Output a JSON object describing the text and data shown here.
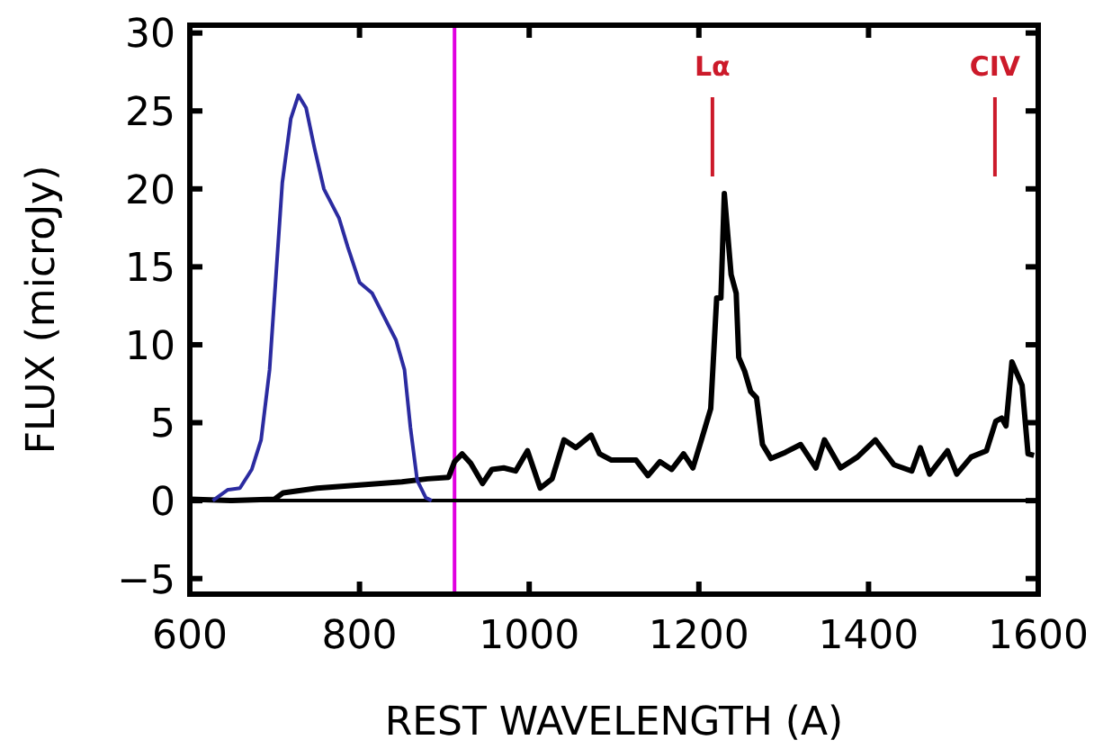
{
  "chart_data": {
    "type": "line",
    "xlabel": "REST WAVELENGTH (A)",
    "ylabel": "FLUX (microJy)",
    "xlim": [
      600,
      1600
    ],
    "xticks": [
      600,
      800,
      1000,
      1200,
      1400,
      1600
    ],
    "ylim": [
      -6,
      30.5
    ],
    "yticks": [
      {
        "value": -5,
        "label": "−5"
      },
      0,
      5,
      10,
      15,
      20,
      25,
      30
    ],
    "grid": false,
    "line_style": "solid",
    "marker": "none",
    "series": [
      {
        "color": "#000000",
        "x": [
          600,
          650,
          700,
          710,
          750,
          800,
          850,
          880,
          905,
          912,
          921,
          931,
          945,
          956,
          970,
          984,
          998,
          1013,
          1027,
          1041,
          1055,
          1073,
          1083,
          1097,
          1126,
          1140,
          1154,
          1168,
          1182,
          1193,
          1203,
          1214,
          1221,
          1226,
          1230,
          1238,
          1244,
          1247,
          1254,
          1261,
          1268,
          1275,
          1285,
          1302,
          1320,
          1338,
          1348,
          1367,
          1387,
          1408,
          1430,
          1451,
          1461,
          1472,
          1493,
          1504,
          1521,
          1539,
          1550,
          1557,
          1562,
          1569,
          1581,
          1588,
          1595
        ],
        "values": [
          0.1,
          0,
          0.1,
          0.5,
          0.8,
          1,
          1.2,
          1.4,
          1.5,
          2.5,
          3,
          2.4,
          1.1,
          2,
          2.1,
          1.9,
          3.2,
          0.8,
          1.4,
          3.9,
          3.4,
          4.2,
          3,
          2.6,
          2.6,
          1.6,
          2.5,
          2,
          3,
          2.1,
          3.9,
          5.9,
          13,
          13,
          19.7,
          14.5,
          13.3,
          9.2,
          8.3,
          7,
          6.6,
          3.6,
          2.7,
          3.1,
          3.6,
          2.1,
          3.9,
          2.1,
          2.8,
          3.9,
          2.3,
          1.9,
          3.4,
          1.7,
          3.2,
          1.7,
          2.8,
          3.2,
          5.1,
          5.3,
          4.8,
          8.9,
          7.4,
          3,
          2.9
        ]
      },
      {
        "color": "#2b2ba0",
        "x": [
          627,
          645,
          659,
          673,
          684,
          694,
          701,
          709,
          719,
          728,
          737,
          747,
          758,
          776,
          786,
          800,
          815,
          829,
          843,
          853,
          860,
          868,
          878,
          885
        ],
        "values": [
          0,
          0.7,
          0.8,
          2,
          3.9,
          8.4,
          14,
          20.4,
          24.5,
          26,
          25.2,
          22.6,
          20,
          18.1,
          16.3,
          14,
          13.3,
          11.8,
          10.3,
          8.4,
          4.7,
          1.3,
          0.2,
          0
        ]
      }
    ],
    "ref_lines": [
      {
        "axis": "x",
        "value": 912,
        "color": "#e000e0"
      },
      {
        "axis": "y",
        "value": 0,
        "color": "#000000"
      },
      {
        "axis": "x",
        "value": 1216,
        "label": "Lα",
        "color": "#cc1a2a"
      },
      {
        "axis": "x",
        "value": 1549,
        "label": "CIV",
        "color": "#cc1a2a"
      }
    ]
  }
}
